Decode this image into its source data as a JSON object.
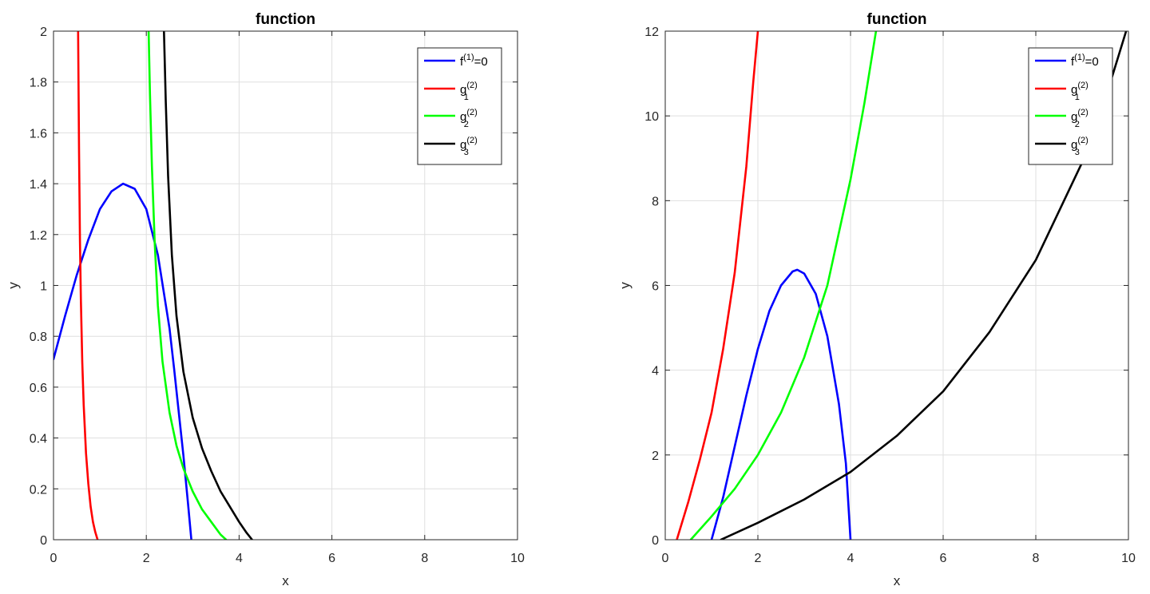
{
  "chart_data": [
    {
      "type": "line",
      "title": "function",
      "xlabel": "x",
      "ylabel": "y",
      "xlim": [
        0,
        10
      ],
      "ylim": [
        0,
        2
      ],
      "xticks": [
        "0",
        "2",
        "4",
        "6",
        "8",
        "10"
      ],
      "yticks": [
        "0",
        "0.2",
        "0.4",
        "0.6",
        "0.8",
        "1",
        "1.2",
        "1.4",
        "1.6",
        "1.8",
        "2"
      ],
      "grid": true,
      "legend_position": "top-right",
      "series": [
        {
          "name": "f(1)=0",
          "color": "#0000ff",
          "x": [
            0.0,
            0.25,
            0.5,
            0.75,
            1.0,
            1.25,
            1.5,
            1.75,
            2.0,
            2.25,
            2.5,
            2.6,
            2.7,
            2.8,
            2.9,
            2.97
          ],
          "y": [
            0.71,
            0.88,
            1.04,
            1.18,
            1.3,
            1.37,
            1.4,
            1.38,
            1.3,
            1.12,
            0.83,
            0.67,
            0.5,
            0.33,
            0.14,
            0.0
          ]
        },
        {
          "name": "g1(2)",
          "color": "#ff0000",
          "x": [
            0.53,
            0.55,
            0.57,
            0.59,
            0.62,
            0.65,
            0.7,
            0.75,
            0.8,
            0.85,
            0.9,
            0.95
          ],
          "y": [
            2.0,
            1.52,
            1.18,
            0.94,
            0.7,
            0.53,
            0.34,
            0.22,
            0.13,
            0.07,
            0.03,
            0.0
          ]
        },
        {
          "name": "g2(2)",
          "color": "#00ff00",
          "x": [
            2.05,
            2.08,
            2.12,
            2.18,
            2.25,
            2.35,
            2.5,
            2.65,
            2.8,
            3.0,
            3.2,
            3.4,
            3.6,
            3.72
          ],
          "y": [
            2.0,
            1.75,
            1.47,
            1.17,
            0.92,
            0.7,
            0.5,
            0.37,
            0.28,
            0.19,
            0.12,
            0.07,
            0.02,
            0.0
          ]
        },
        {
          "name": "g3(2)",
          "color": "#000000",
          "x": [
            2.38,
            2.42,
            2.47,
            2.55,
            2.65,
            2.8,
            3.0,
            3.2,
            3.4,
            3.6,
            3.8,
            4.0,
            4.15,
            4.28
          ],
          "y": [
            2.0,
            1.72,
            1.43,
            1.12,
            0.88,
            0.66,
            0.48,
            0.36,
            0.27,
            0.19,
            0.13,
            0.07,
            0.03,
            0.0
          ]
        }
      ]
    },
    {
      "type": "line",
      "title": "function",
      "xlabel": "x",
      "ylabel": "y",
      "xlim": [
        0,
        10
      ],
      "ylim": [
        0,
        12
      ],
      "xticks": [
        "0",
        "2",
        "4",
        "6",
        "8",
        "10"
      ],
      "yticks": [
        "0",
        "2",
        "4",
        "6",
        "8",
        "10",
        "12"
      ],
      "grid": true,
      "legend_position": "top-right",
      "series": [
        {
          "name": "f(1)=0",
          "color": "#0000ff",
          "x": [
            1.0,
            1.25,
            1.5,
            1.75,
            2.0,
            2.25,
            2.5,
            2.75,
            2.85,
            3.0,
            3.25,
            3.5,
            3.75,
            3.9,
            4.0
          ],
          "y": [
            0.0,
            1.0,
            2.2,
            3.4,
            4.5,
            5.4,
            6.0,
            6.33,
            6.37,
            6.28,
            5.8,
            4.8,
            3.2,
            1.8,
            0.0
          ]
        },
        {
          "name": "g1(2)",
          "color": "#ff0000",
          "x": [
            0.25,
            0.5,
            0.75,
            1.0,
            1.25,
            1.5,
            1.75,
            1.9,
            2.0
          ],
          "y": [
            0.0,
            0.9,
            1.9,
            3.0,
            4.5,
            6.3,
            8.8,
            10.8,
            12.0
          ]
        },
        {
          "name": "g2(2)",
          "color": "#00ff00",
          "x": [
            0.55,
            1.0,
            1.5,
            2.0,
            2.5,
            3.0,
            3.5,
            4.0,
            4.3,
            4.55
          ],
          "y": [
            0.0,
            0.55,
            1.2,
            2.0,
            3.0,
            4.3,
            6.0,
            8.5,
            10.3,
            12.0
          ]
        },
        {
          "name": "g3(2)",
          "color": "#000000",
          "x": [
            1.2,
            2.0,
            3.0,
            4.0,
            5.0,
            6.0,
            7.0,
            8.0,
            9.0,
            9.5,
            9.95
          ],
          "y": [
            0.0,
            0.4,
            0.95,
            1.6,
            2.45,
            3.5,
            4.9,
            6.6,
            8.9,
            10.4,
            12.0
          ]
        }
      ]
    }
  ]
}
